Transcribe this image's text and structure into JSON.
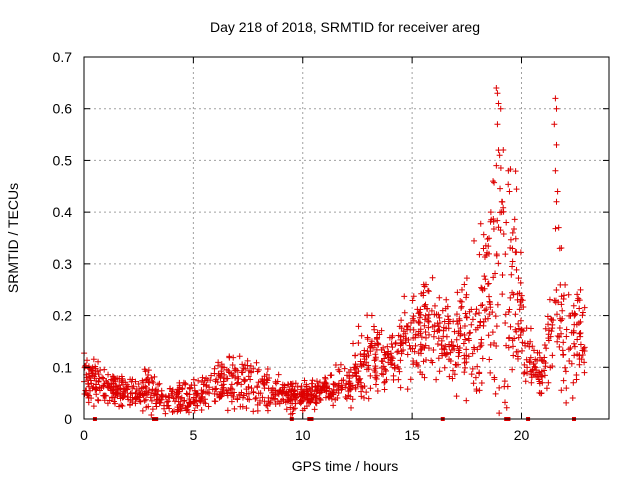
{
  "chart_data": {
    "type": "scatter",
    "title": "Day 218 of 2018, SRMTID for receiver areg",
    "xlabel": "GPS time / hours",
    "ylabel": "SRMTID / TECUs",
    "xlim": [
      0,
      24
    ],
    "ylim": [
      0,
      0.7
    ],
    "xticks": [
      0,
      5,
      10,
      15,
      20
    ],
    "xtick_labels": [
      "0",
      "5",
      "10",
      "15",
      "20"
    ],
    "yticks": [
      0,
      0.1,
      0.2,
      0.3,
      0.4,
      0.5,
      0.6,
      0.7
    ],
    "ytick_labels": [
      "0",
      "0.1",
      "0.2",
      "0.3",
      "0.4",
      "0.5",
      "0.6",
      "0.7"
    ],
    "grid": true,
    "marker": "plus",
    "color": "#dd0000",
    "envelope": {
      "x": [
        0.0,
        0.5,
        1.0,
        1.5,
        2.0,
        2.5,
        3.0,
        3.5,
        4.0,
        4.5,
        5.0,
        5.5,
        6.0,
        6.5,
        7.0,
        7.5,
        8.0,
        8.5,
        9.0,
        9.5,
        10.0,
        10.5,
        11.0,
        11.5,
        12.0,
        12.5,
        13.0,
        13.5,
        14.0,
        14.5,
        15.0,
        15.5,
        16.0,
        16.5,
        17.0,
        17.5,
        18.0,
        18.5,
        19.0,
        19.5,
        20.0,
        20.5,
        21.0,
        21.5,
        22.0,
        22.5,
        23.0
      ],
      "mean": [
        0.085,
        0.08,
        0.065,
        0.055,
        0.05,
        0.055,
        0.06,
        0.04,
        0.035,
        0.04,
        0.045,
        0.055,
        0.06,
        0.065,
        0.075,
        0.065,
        0.06,
        0.055,
        0.05,
        0.045,
        0.045,
        0.05,
        0.06,
        0.06,
        0.07,
        0.1,
        0.11,
        0.115,
        0.11,
        0.13,
        0.17,
        0.19,
        0.18,
        0.14,
        0.15,
        0.17,
        0.2,
        0.22,
        0.27,
        0.26,
        0.2,
        0.1,
        0.09,
        0.19,
        0.15,
        0.17,
        0.13
      ],
      "spread": [
        0.03,
        0.025,
        0.02,
        0.02,
        0.02,
        0.02,
        0.025,
        0.015,
        0.015,
        0.02,
        0.02,
        0.025,
        0.025,
        0.03,
        0.035,
        0.03,
        0.03,
        0.025,
        0.02,
        0.02,
        0.015,
        0.015,
        0.015,
        0.02,
        0.03,
        0.04,
        0.05,
        0.04,
        0.04,
        0.05,
        0.06,
        0.06,
        0.06,
        0.05,
        0.06,
        0.07,
        0.09,
        0.12,
        0.18,
        0.14,
        0.08,
        0.03,
        0.04,
        0.12,
        0.08,
        0.06,
        0.04
      ]
    },
    "spikes": [
      {
        "x": 18.85,
        "y": 0.64
      },
      {
        "x": 18.9,
        "y": 0.63
      },
      {
        "x": 18.95,
        "y": 0.61
      },
      {
        "x": 19.05,
        "y": 0.6
      },
      {
        "x": 18.9,
        "y": 0.57
      },
      {
        "x": 18.95,
        "y": 0.52
      },
      {
        "x": 19.0,
        "y": 0.51
      },
      {
        "x": 18.85,
        "y": 0.49
      },
      {
        "x": 19.4,
        "y": 0.48
      },
      {
        "x": 19.45,
        "y": 0.44
      },
      {
        "x": 18.7,
        "y": 0.46
      },
      {
        "x": 21.55,
        "y": 0.62
      },
      {
        "x": 21.6,
        "y": 0.6
      },
      {
        "x": 21.5,
        "y": 0.57
      },
      {
        "x": 21.6,
        "y": 0.53
      },
      {
        "x": 21.55,
        "y": 0.48
      },
      {
        "x": 21.65,
        "y": 0.44
      },
      {
        "x": 21.6,
        "y": 0.42
      },
      {
        "x": 21.7,
        "y": 0.37
      },
      {
        "x": 21.75,
        "y": 0.33
      },
      {
        "x": 19.6,
        "y": 0.36
      },
      {
        "x": 18.6,
        "y": 0.4
      },
      {
        "x": 19.1,
        "y": 0.42
      },
      {
        "x": 19.3,
        "y": 0.38
      }
    ],
    "gap_markers_x": [
      0.5,
      3.2,
      3.3,
      9.5,
      10.3,
      10.4,
      16.4,
      19.3,
      19.4,
      20.3,
      22.4
    ]
  }
}
